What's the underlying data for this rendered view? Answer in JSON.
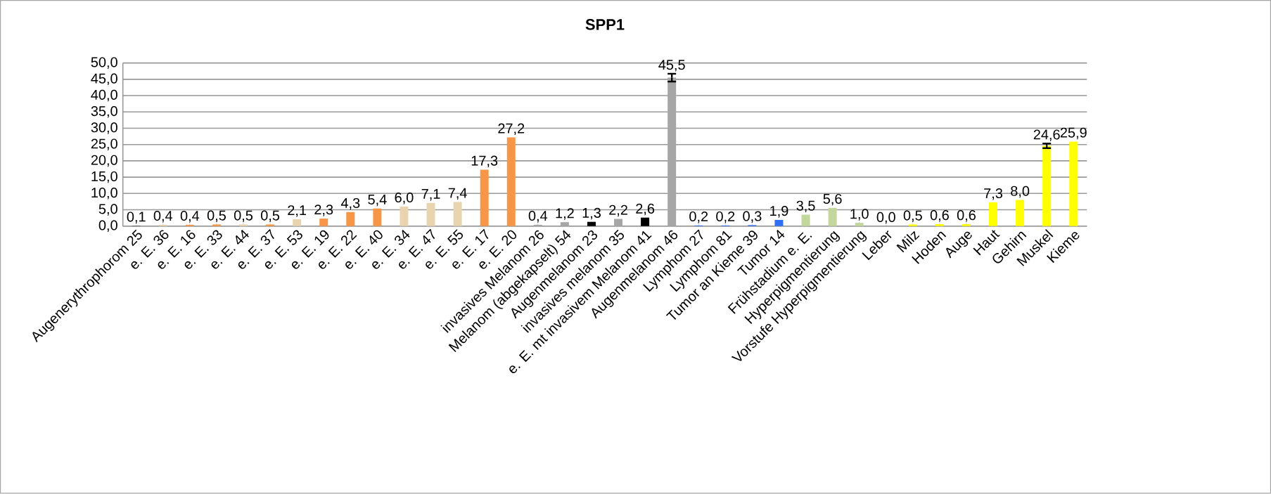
{
  "chart_data": {
    "type": "bar",
    "title": "SPP1",
    "categories": [
      "Augenerythrophorom 25",
      "e. E. 36",
      "e. E. 16",
      "e. E. 33",
      "e. E. 44",
      "e. E. 37",
      "e. E. 53",
      "e. E. 19",
      "e. E. 22",
      "e. E. 40",
      "e. E. 34",
      "e. E. 47",
      "e. E. 55",
      "e. E. 17",
      "e. E. 20",
      "invasives Melanom 26",
      "Melanom (abgekapselt) 54",
      "Augenmelanom 23",
      "invasives melanom 35",
      "e. E. mt invasivem Melanom 41",
      "Augenmelanom 46",
      "Lymphom 27",
      "Lymphom 81",
      "Tumor an Kieme 39",
      "Tumor 14",
      "Frühstadium e. E.",
      "Hyperpigmentierung",
      "Vorstufe Hyperpigmentierung",
      "Leber",
      "Milz",
      "Hoden",
      "Auge",
      "Haut",
      "Gehirn",
      "Muskel",
      "Kieme"
    ],
    "values": [
      0.1,
      0.4,
      0.4,
      0.5,
      0.5,
      0.5,
      2.1,
      2.3,
      4.3,
      5.4,
      6.0,
      7.1,
      7.4,
      17.3,
      27.2,
      0.4,
      1.2,
      1.3,
      2.2,
      2.6,
      45.5,
      0.2,
      0.2,
      0.3,
      1.9,
      3.5,
      5.6,
      1.0,
      0.0,
      0.5,
      0.6,
      0.6,
      7.3,
      8.0,
      24.6,
      25.9
    ],
    "errors": [
      null,
      null,
      null,
      null,
      null,
      null,
      null,
      null,
      null,
      null,
      null,
      null,
      null,
      null,
      null,
      null,
      null,
      null,
      null,
      null,
      1.2,
      null,
      null,
      null,
      null,
      null,
      null,
      null,
      null,
      null,
      null,
      null,
      null,
      null,
      0.7,
      null
    ],
    "value_labels": [
      "0,1",
      "0,4",
      "0,4",
      "0,5",
      "0,5",
      "0,5",
      "2,1",
      "2,3",
      "4,3",
      "5,4",
      "6,0",
      "7,1",
      "7,4",
      "17,3",
      "27,2",
      "0,4",
      "1,2",
      "1,3",
      "2,2",
      "2,6",
      "45,5",
      "0,2",
      "0,2",
      "0,3",
      "1,9",
      "3,5",
      "5,6",
      "1,0",
      "0,0",
      "0,5",
      "0,6",
      "0,6",
      "7,3",
      "8,0",
      "24,6",
      "25,9"
    ],
    "colors": [
      "#404040",
      "#e8d5b0",
      "#f79646",
      "#f79646",
      "#e8d5b0",
      "#f79646",
      "#e8d5b0",
      "#f79646",
      "#f79646",
      "#f79646",
      "#e8d5b0",
      "#e8d5b0",
      "#e8d5b0",
      "#f79646",
      "#f79646",
      "#a6a6a6",
      "#a6a6a6",
      "#000000",
      "#a6a6a6",
      "#000000",
      "#a6a6a6",
      "#2f6ef5",
      "#2f6ef5",
      "#2f6ef5",
      "#2f6ef5",
      "#c3d69b",
      "#c3d69b",
      "#c3d69b",
      "#a6a6a6",
      "#ffff00",
      "#ffff00",
      "#ffff00",
      "#ffff00",
      "#ffff00",
      "#ffff00",
      "#ffff00"
    ],
    "ylim": [
      0,
      50
    ],
    "yticks": [
      {
        "value": 0,
        "label": "0,0"
      },
      {
        "value": 5,
        "label": "5,0"
      },
      {
        "value": 10,
        "label": "10,0"
      },
      {
        "value": 15,
        "label": "15,0"
      },
      {
        "value": 20,
        "label": "20,0"
      },
      {
        "value": 25,
        "label": "25,0"
      },
      {
        "value": 30,
        "label": "30,0"
      },
      {
        "value": 35,
        "label": "35,0"
      },
      {
        "value": 40,
        "label": "40,0"
      },
      {
        "value": 45,
        "label": "45,0"
      },
      {
        "value": 50,
        "label": "50,0"
      }
    ],
    "grid": "y"
  }
}
